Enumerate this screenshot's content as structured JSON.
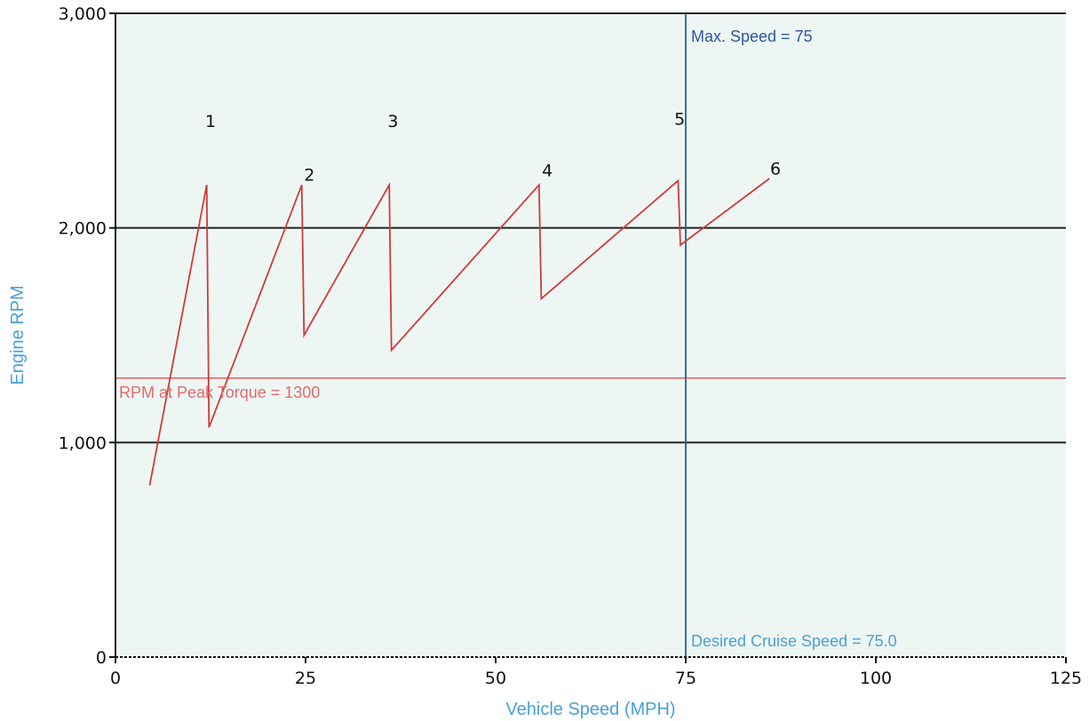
{
  "chart_data": {
    "type": "line",
    "title": "",
    "xlabel": "Vehicle Speed (MPH)",
    "ylabel": "Engine RPM",
    "xlim": [
      0,
      125
    ],
    "ylim": [
      0,
      3000
    ],
    "x_ticks": [
      0,
      25,
      50,
      75,
      100,
      125
    ],
    "x_tick_labels": [
      "0",
      "25",
      "50",
      "75",
      "100",
      "125"
    ],
    "y_ticks": [
      0,
      1000,
      2000,
      3000
    ],
    "y_tick_labels": [
      "0",
      "1,000",
      "2,000",
      "3,000"
    ],
    "grid": "horizontal",
    "colors": {
      "plot_background": "#eef6f4",
      "gear_curve": "#d23a3a",
      "peak_torque_line": "#e36a6a",
      "speed_line": "#2a5a9e",
      "axis_title": "#4a9fd8",
      "grid": "#222222"
    },
    "series": [
      {
        "points": [
          [
            4.5,
            800
          ],
          [
            12,
            2200
          ],
          [
            12.3,
            1070
          ],
          [
            24.5,
            2200
          ],
          [
            24.8,
            1500
          ],
          [
            36,
            2200
          ],
          [
            36.3,
            1430
          ],
          [
            55.7,
            2200
          ],
          [
            56,
            1670
          ],
          [
            74,
            2220
          ],
          [
            74.3,
            1920
          ],
          [
            86,
            2230
          ]
        ]
      }
    ],
    "gear_labels": [
      {
        "text": "1",
        "x": 12.5,
        "y": 2470
      },
      {
        "text": "2",
        "x": 25.5,
        "y": 2220
      },
      {
        "text": "3",
        "x": 36.5,
        "y": 2470
      },
      {
        "text": "4",
        "x": 56.8,
        "y": 2240
      },
      {
        "text": "5",
        "x": 74.2,
        "y": 2480
      },
      {
        "text": "6",
        "x": 86.8,
        "y": 2250
      }
    ],
    "reference_lines": {
      "peak_torque_rpm": 1300,
      "max_speed": 75
    },
    "annotations": {
      "peak_torque": "RPM at Peak Torque = 1300",
      "max_speed": "Max. Speed = 75",
      "cruise_speed": "Desired Cruise Speed = 75.0"
    }
  }
}
